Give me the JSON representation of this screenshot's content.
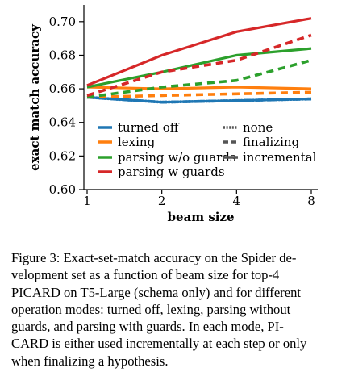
{
  "chart_data": {
    "type": "line",
    "xlabel": "beam size",
    "ylabel": "exact match accuracy",
    "x": [
      1,
      2,
      4,
      8
    ],
    "x_scale": "log2",
    "xticks": [
      "1",
      "2",
      "4",
      "8"
    ],
    "ylim": [
      0.6,
      0.71
    ],
    "yticks": [
      "0.60",
      "0.62",
      "0.64",
      "0.66",
      "0.68",
      "0.70"
    ],
    "grid": false,
    "legend_placement": "bottom",
    "series": [
      {
        "name": "turned off",
        "mode": "none",
        "color": "#1f77b4",
        "style": "dotted",
        "values": [
          0.655,
          0.652,
          0.653,
          0.654
        ]
      },
      {
        "name": "turned off",
        "mode": "finalizing",
        "color": "#1f77b4",
        "style": "dashed",
        "values": [
          0.655,
          0.652,
          0.653,
          0.654
        ]
      },
      {
        "name": "turned off",
        "mode": "incremental",
        "color": "#1f77b4",
        "style": "solid",
        "values": [
          0.655,
          0.652,
          0.653,
          0.654
        ]
      },
      {
        "name": "lexing",
        "mode": "finalizing",
        "color": "#ff7f0e",
        "style": "dashed",
        "values": [
          0.655,
          0.656,
          0.657,
          0.658
        ]
      },
      {
        "name": "lexing",
        "mode": "incremental",
        "color": "#ff7f0e",
        "style": "solid",
        "values": [
          0.661,
          0.66,
          0.661,
          0.66
        ]
      },
      {
        "name": "parsing w/o guards",
        "mode": "finalizing",
        "color": "#2ca02c",
        "style": "dashed",
        "values": [
          0.655,
          0.661,
          0.665,
          0.677
        ]
      },
      {
        "name": "parsing w/o guards",
        "mode": "incremental",
        "color": "#2ca02c",
        "style": "solid",
        "values": [
          0.661,
          0.67,
          0.68,
          0.684
        ]
      },
      {
        "name": "parsing w guards",
        "mode": "finalizing",
        "color": "#d62728",
        "style": "dashed",
        "values": [
          0.656,
          0.67,
          0.677,
          0.692
        ]
      },
      {
        "name": "parsing w guards",
        "mode": "incremental",
        "color": "#d62728",
        "style": "solid",
        "values": [
          0.662,
          0.68,
          0.694,
          0.702
        ]
      }
    ],
    "legend": {
      "methods": [
        {
          "label": "turned off",
          "color": "#1f77b4"
        },
        {
          "label": "lexing",
          "color": "#ff7f0e"
        },
        {
          "label": "parsing w/o guards",
          "color": "#2ca02c"
        },
        {
          "label": "parsing w guards",
          "color": "#d62728"
        }
      ],
      "modes": [
        {
          "label": "none",
          "style": "dotted"
        },
        {
          "label": "finalizing",
          "style": "dashed"
        },
        {
          "label": "incremental",
          "style": "solid"
        }
      ]
    },
    "colors": {
      "axis": "#000000",
      "mode_legend": "#555555"
    }
  },
  "caption": {
    "lines": [
      "Figure 3: Exact-set-match accuracy on the Spider de-",
      "velopment set as a function of beam size for top-4",
      "PICARD on T5-Large (schema only) and for different",
      "operation modes: turned off, lexing, parsing without",
      "guards, and parsing with guards.  In each mode, PI-",
      "CARD is either used incrementally at each step or only",
      "when finalizing a hypothesis."
    ]
  }
}
